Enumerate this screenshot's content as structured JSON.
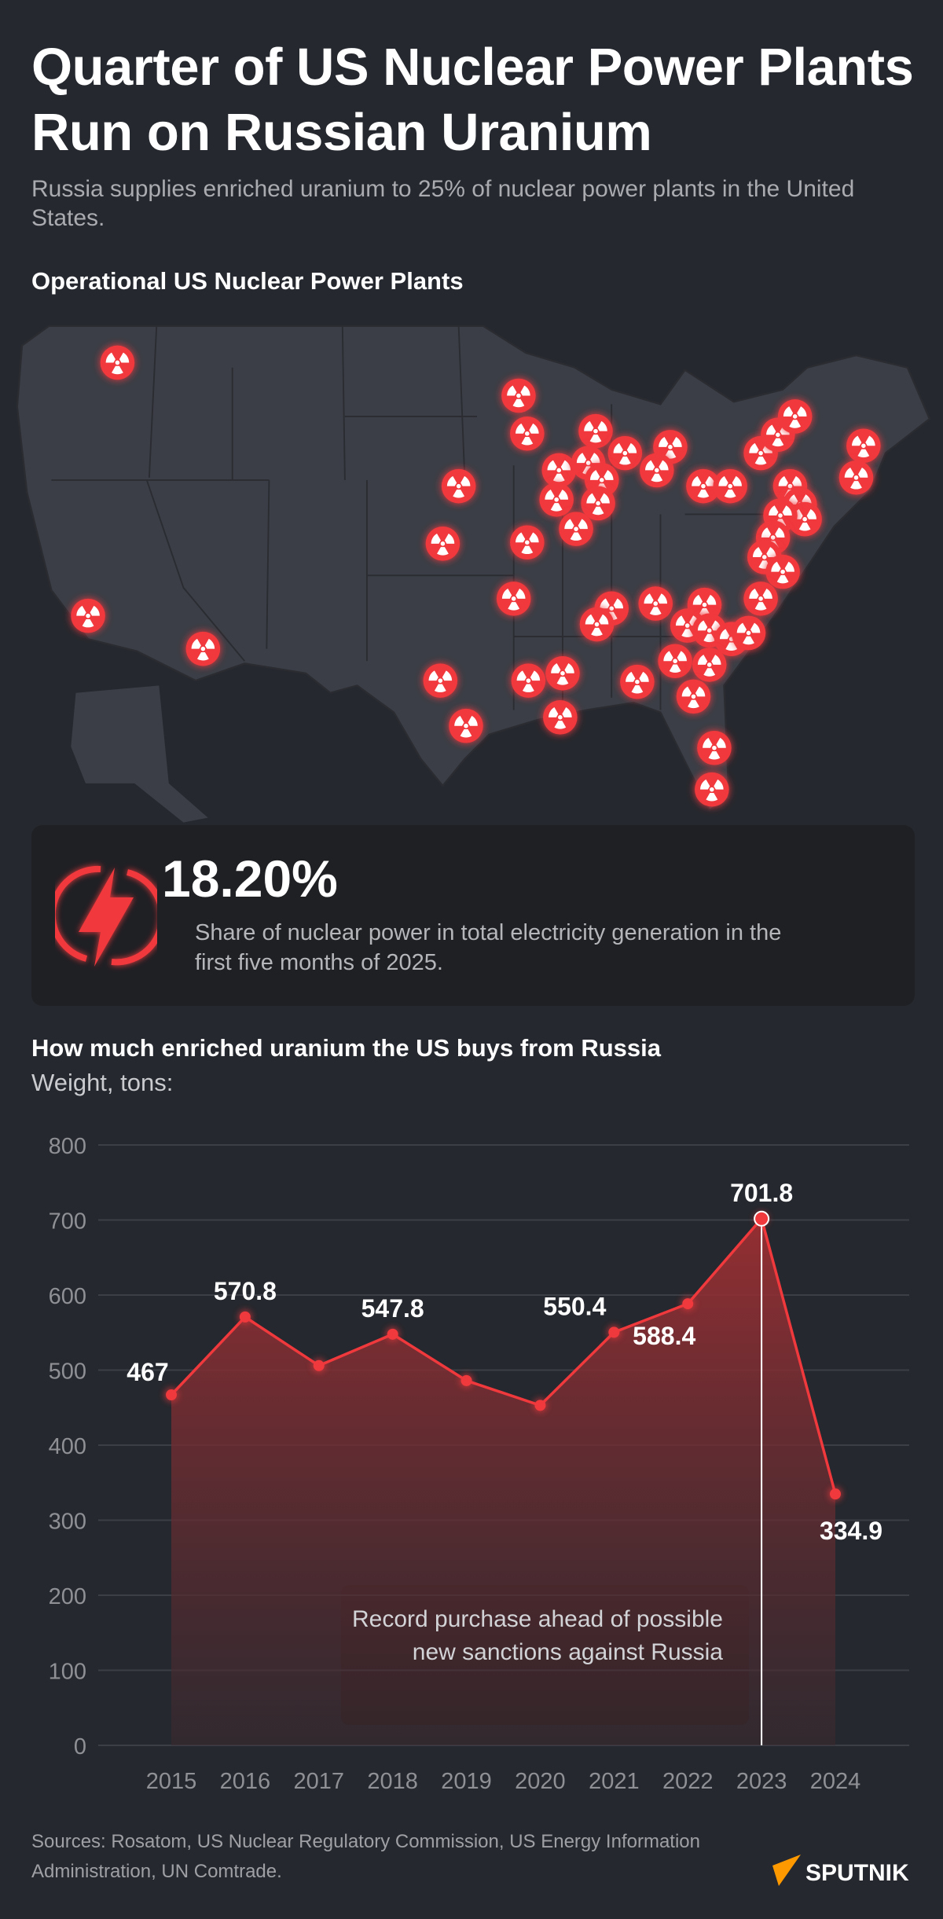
{
  "header": {
    "title": "Quarter of US Nuclear Power Plants Run on Russian Uranium",
    "subtitle": "Russia supplies enriched uranium to 25% of nuclear power plants in the United States."
  },
  "map": {
    "title": "Operational US Nuclear Power Plants",
    "marker_icon": "radiation-icon",
    "marker_color": "#f0393c",
    "land_color": "#3b3e46"
  },
  "stat_card": {
    "icon": "lightning-icon",
    "value": "18.20%",
    "description": "Share of nuclear power in total electricity generation in the first five months of 2025."
  },
  "chart_data": {
    "type": "area",
    "title": "How much enriched uranium the US buys from Russia",
    "ylabel": "Weight, tons:",
    "categories": [
      "2015",
      "2016",
      "2017",
      "2018",
      "2019",
      "2020",
      "2021",
      "2022",
      "2023",
      "2024"
    ],
    "values": [
      467,
      570.8,
      506,
      547.8,
      486,
      453,
      550.4,
      588.4,
      701.8,
      334.9
    ],
    "data_labels": [
      "467",
      "570.8",
      "",
      "547.8",
      "",
      "",
      "550.4",
      "588.4",
      "701.8",
      "334.9"
    ],
    "yticks": [
      "0",
      "100",
      "200",
      "300",
      "400",
      "500",
      "600",
      "700",
      "800"
    ],
    "ylim": [
      0,
      800
    ],
    "grid": true,
    "line_color": "#f0393c",
    "annotation": {
      "category": "2023",
      "text": "Record purchase ahead of possible new sanctions against Russia"
    }
  },
  "footer": {
    "sources": "Sources: Rosatom, US Nuclear Regulatory Commission, US Energy Information Administration, UN Comtrade.",
    "logo_text": "SPUTNIK",
    "logo_color": "#ff9900"
  }
}
